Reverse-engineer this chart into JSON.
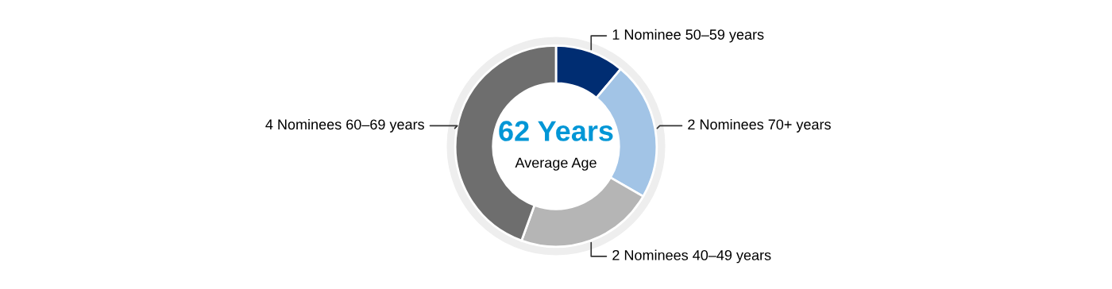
{
  "chart_data": {
    "type": "donut",
    "categories": [
      "1 Nominee 50–59 years",
      "2 Nominees 70+ years",
      "2 Nominees 40–49 years",
      "4 Nominees 60–69 years"
    ],
    "values": [
      1,
      2,
      2,
      4
    ],
    "colors": [
      "#002d72",
      "#a2c4e6",
      "#b5b5b5",
      "#6e6e6e"
    ],
    "annotations": [
      "62 Years",
      "Average Age"
    ]
  }
}
